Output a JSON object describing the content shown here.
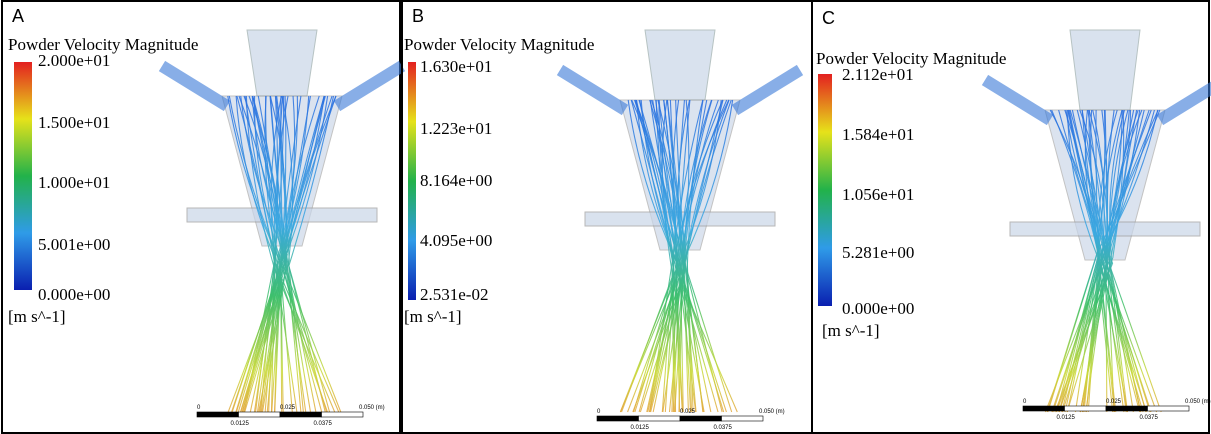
{
  "panels": [
    {
      "label": "A",
      "title": "Powder Velocity Magnitude",
      "legend_labels": [
        "2.000e+01",
        "1.500e+01",
        "1.000e+01",
        "5.001e+00",
        "0.000e+00"
      ],
      "unit": "[m s^-1]",
      "scale_labels": [
        "0",
        "0.025",
        "0.050 (m)",
        "0.0125",
        "0.0375"
      ]
    },
    {
      "label": "B",
      "title": "Powder Velocity Magnitude",
      "legend_labels": [
        "1.630e+01",
        "1.223e+01",
        "8.164e+00",
        "4.095e+00",
        "2.531e-02"
      ],
      "unit": "[m s^-1]",
      "scale_labels": [
        "0",
        "0.025",
        "0.050 (m)",
        "0.0125",
        "0.0375"
      ]
    },
    {
      "label": "C",
      "title": "Powder Velocity Magnitude",
      "legend_labels": [
        "2.112e+01",
        "1.584e+01",
        "1.056e+01",
        "5.281e+00",
        "0.000e+00"
      ],
      "unit": "[m s^-1]",
      "scale_labels": [
        "0",
        "0.025",
        "0.050 (m)",
        "0.0125",
        "0.0375"
      ]
    }
  ]
}
